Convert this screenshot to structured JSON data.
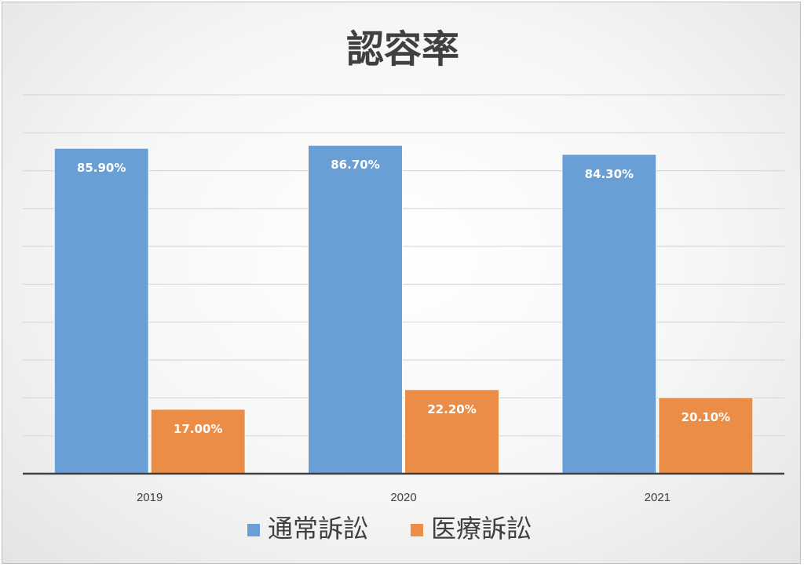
{
  "chart_data": {
    "type": "bar",
    "title": "認容率",
    "categories": [
      "2019",
      "2020",
      "2021"
    ],
    "series": [
      {
        "name": "通常訴訟",
        "values": [
          85.9,
          86.7,
          84.3
        ],
        "labels": [
          "85.90%",
          "86.70%",
          "84.30%"
        ],
        "color": "#6a9fd6"
      },
      {
        "name": "医療訴訟",
        "values": [
          17.0,
          22.2,
          20.1
        ],
        "labels": [
          "17.00%",
          "22.20%",
          "20.10%"
        ],
        "color": "#ec8d47"
      }
    ],
    "ylim": [
      0,
      100
    ],
    "ygrid_step": 10,
    "grid": true,
    "ytick_labels_shown": false,
    "legend_position": "bottom"
  }
}
